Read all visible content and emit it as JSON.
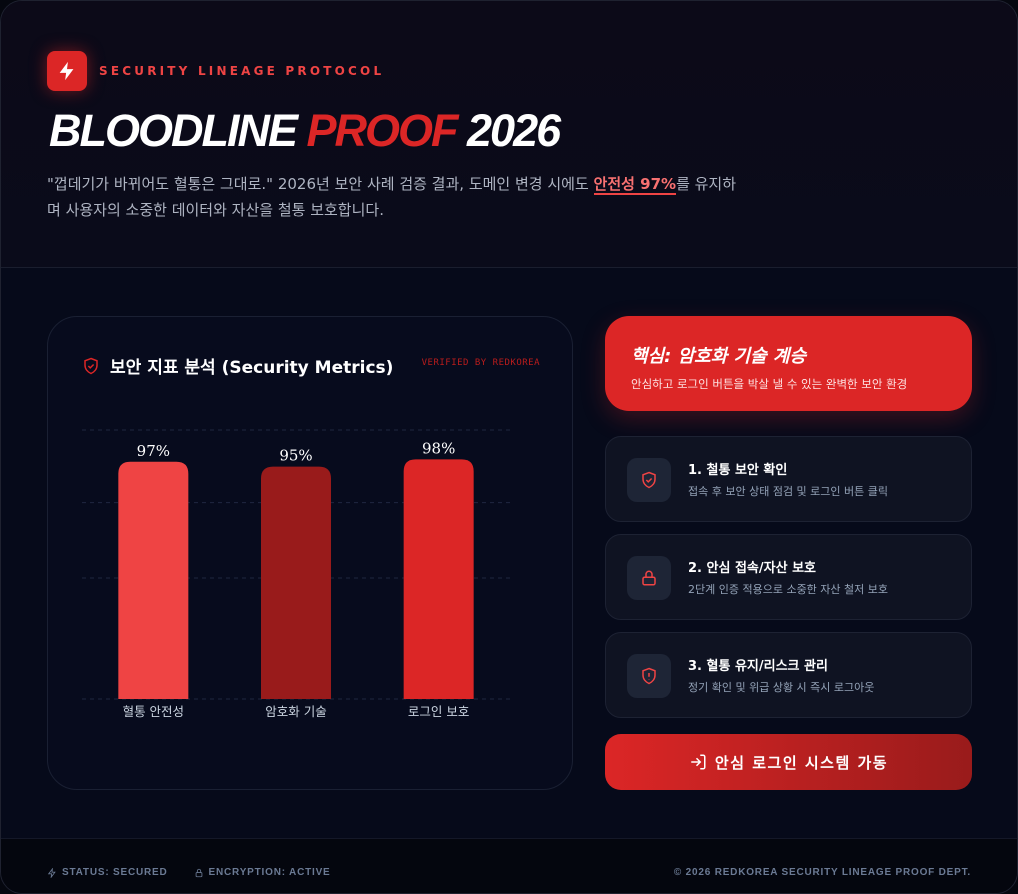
{
  "header": {
    "kicker": "SECURITY LINEAGE PROTOCOL",
    "title_part1": "BLOODLINE ",
    "title_part2": "PROOF",
    "title_part3": " 2026",
    "subtitle_before": "\"껍데기가 바뀌어도 혈통은 그대로.\" 2026년 보안 사례 검증 결과, 도메인 변경 시에도 ",
    "subtitle_highlight": "안전성 97%",
    "subtitle_after": "를 유지하며 사용자의 소중한 데이터와 자산을 철통 보호합니다.",
    "logo_icon": "lightning-bolt-icon"
  },
  "metrics_card": {
    "title": "보안 지표 분석 (Security Metrics)",
    "badge": "VERIFIED BY REDKOREA"
  },
  "chart_data": {
    "type": "bar",
    "categories": [
      "혈통 안전성",
      "암호화 기술",
      "로그인 보호"
    ],
    "values": [
      97,
      95,
      98
    ],
    "value_labels": [
      "97%",
      "95%",
      "98%"
    ],
    "colors": [
      "#ef4444",
      "#991b1b",
      "#dc2626"
    ],
    "ylim": [
      0,
      110
    ],
    "grid": true
  },
  "hero": {
    "title": "핵심: 암호화 기술 계승",
    "desc": "안심하고 로그인 버튼을 박살 낼 수 있는 완벽한 보안 환경"
  },
  "steps": [
    {
      "title": "1. 철통 보안 확인",
      "desc": "접속 후 보안 상태 점검 및 로그인 버튼 클릭",
      "icon": "shield-check-icon"
    },
    {
      "title": "2. 안심 접속/자산 보호",
      "desc": "2단계 인증 적용으로 소중한 자산 철저 보호",
      "icon": "lock-icon"
    },
    {
      "title": "3. 혈통 유지/리스크 관리",
      "desc": "정기 확인 및 위급 상황 시 즉시 로그아웃",
      "icon": "shield-alert-icon"
    }
  ],
  "cta": {
    "label": "안심 로그인 시스템 가동",
    "icon": "login-icon"
  },
  "footer": {
    "status": "STATUS: SECURED",
    "encryption": "ENCRYPTION: ACTIVE",
    "copyright": "© 2026 REDKOREA SECURITY LINEAGE PROOF DEPT."
  },
  "colors": {
    "accent": "#dc2626",
    "background": "#060a1a"
  }
}
